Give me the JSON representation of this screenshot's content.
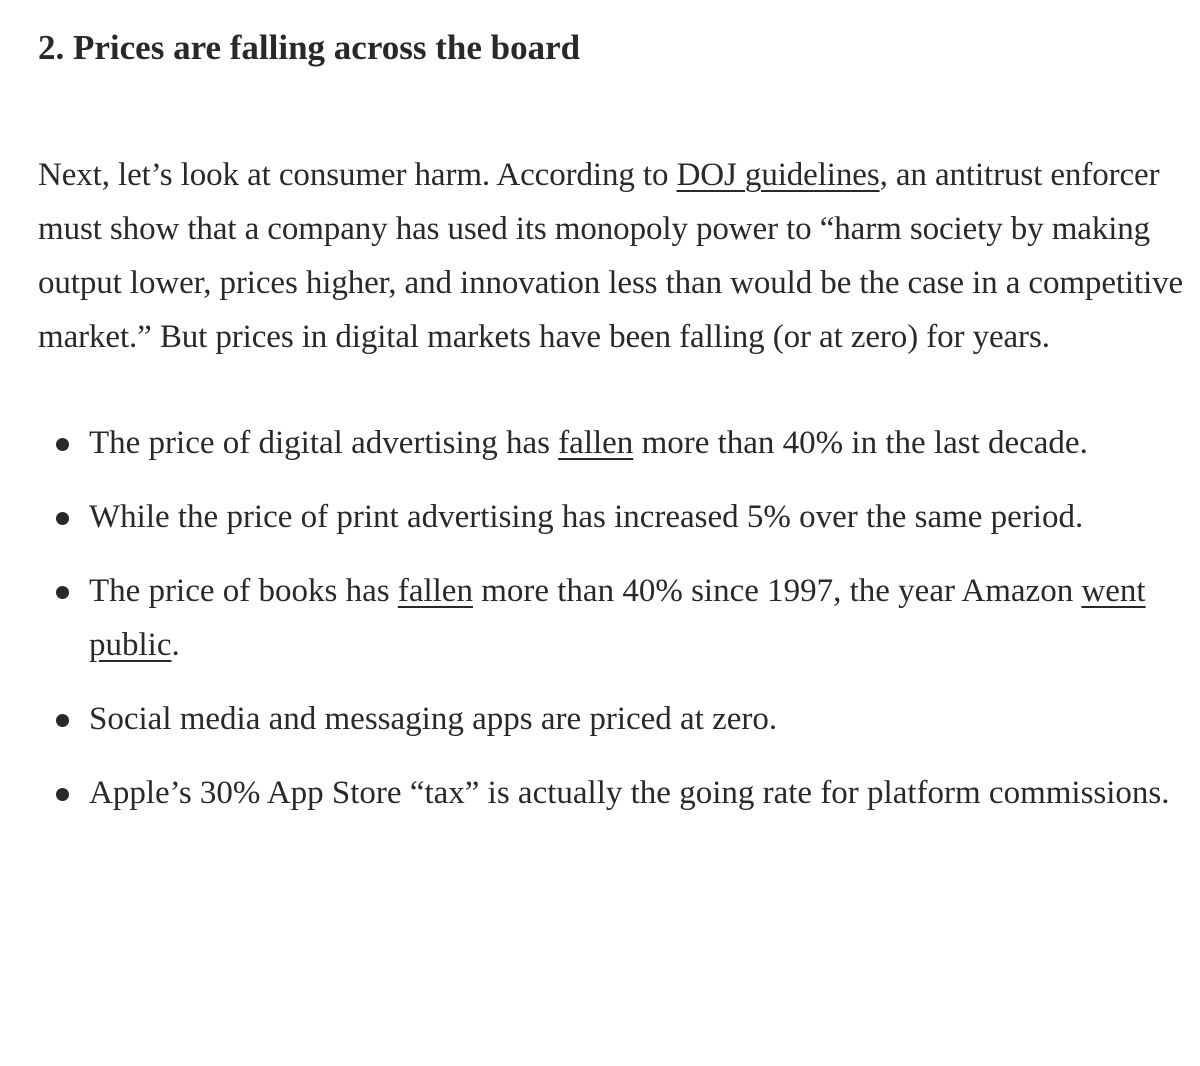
{
  "section": {
    "heading": "2. Prices are falling across the board"
  },
  "paragraph": {
    "t1": "Next, let’s look at consumer harm. According to ",
    "link1": "DOJ guidelines",
    "t2": ", an antitrust enforcer must show that a company has used its monopoly power to “harm society by making output lower, prices higher, and innovation less than would be the case in a competitive market.” But prices in digital markets have been falling (or at zero) for years."
  },
  "bullets": [
    {
      "t1": "The price of digital advertising has ",
      "link": "fallen",
      "t2": " more than 40% in the last decade."
    },
    {
      "t1": "While the price of print advertising has increased 5% over the same period."
    },
    {
      "t1": "The price of books has ",
      "link": "fallen",
      "t2": " more than 40% since 1997, the year Amazon ",
      "link2": "went public",
      "t3": "."
    },
    {
      "t1": "Social media and messaging apps are priced at zero."
    },
    {
      "t1": "Apple’s 30% App Store “tax” is actually the going rate for platform commissions."
    }
  ]
}
